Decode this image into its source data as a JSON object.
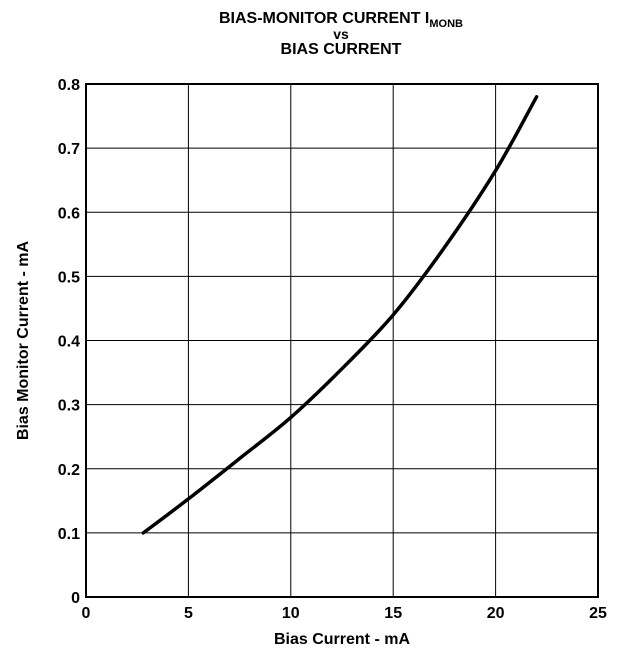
{
  "chart_data": {
    "type": "line",
    "title_line1": "BIAS-MONITOR CURRENT I",
    "title_subscript": "MONB",
    "title_line2": "vs",
    "title_line3": "BIAS CURRENT",
    "xlabel": "Bias Current - mA",
    "ylabel": "Bias Monitor Current - mA",
    "xlim": [
      0,
      25
    ],
    "ylim": [
      0,
      0.8
    ],
    "xticks": [
      "0",
      "5",
      "10",
      "15",
      "20",
      "25"
    ],
    "yticks": [
      "0",
      "0.1",
      "0.2",
      "0.3",
      "0.4",
      "0.5",
      "0.6",
      "0.7",
      "0.8"
    ],
    "grid": true,
    "series": [
      {
        "x": [
          2.8,
          5,
          7.5,
          10,
          12.5,
          15,
          17.5,
          20,
          22
        ],
        "y": [
          0.1,
          0.153,
          0.216,
          0.28,
          0.356,
          0.44,
          0.545,
          0.665,
          0.78
        ]
      }
    ]
  }
}
